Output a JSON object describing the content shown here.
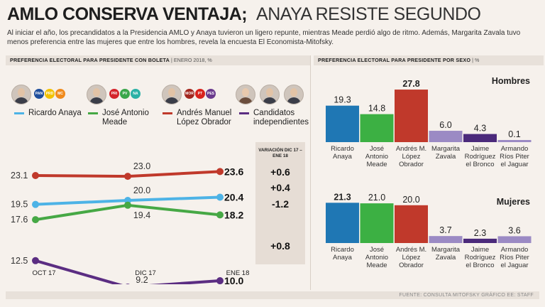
{
  "title": {
    "bold": "AMLO CONSERVA VENTAJA;",
    "light": "ANAYA RESISTE SEGUNDO"
  },
  "intro": "Al iniciar el año, los precandidatos a la Presidencia AMLO y Anaya tuvieron un ligero repunte, mientras Meade perdió algo de ritmo. Además, Margarita Zavala tuvo menos preferencia entre las mujeres que entre los hombres, revela la encuesta El Economista-Mitofsky.",
  "left_header": {
    "bold": "PREFERENCIA ELECTORAL PARA PRESIDENTE CON BOLETA",
    "light": "| ENERO 2018, %"
  },
  "right_header": {
    "bold": "PREFERENCIA ELECTORAL PARA PRESIDENTE POR SEXO",
    "light": "| %"
  },
  "party_logos": {
    "anaya": [
      {
        "text": "PAN",
        "color": "#1f4e9c"
      },
      {
        "text": "PRD",
        "color": "#f2c200"
      },
      {
        "text": "MC",
        "color": "#f08a1c"
      }
    ],
    "meade": [
      {
        "text": "PRI",
        "color": "#d4242b"
      },
      {
        "text": "PV",
        "color": "#3aa64a"
      },
      {
        "text": "NA",
        "color": "#2bb1a6"
      }
    ],
    "amlo": [
      {
        "text": "MOR",
        "color": "#a3271f"
      },
      {
        "text": "PT",
        "color": "#d8231d"
      },
      {
        "text": "PES",
        "color": "#6a3a8d"
      }
    ]
  },
  "legend": [
    {
      "label": "Ricardo Anaya",
      "color": "#4db3e6"
    },
    {
      "label": "José Antonio Meade",
      "color": "#46a845"
    },
    {
      "label": "Andrés Manuel López Obrador",
      "color": "#c0392b"
    },
    {
      "label": "Candidatos independientes",
      "color": "#5b2d82"
    }
  ],
  "variation": {
    "header": "VARIACIÓN DIC 17 – ENE 18",
    "values": [
      "+0.6",
      "+0.4",
      "-1.2",
      "+0.8"
    ]
  },
  "footer": "FUENTE: CONSULTA MITOFSKY    GRÁFICO EE: STAFF",
  "chart_data": [
    {
      "type": "line",
      "categories": [
        "OCT 17",
        "DIC 17",
        "ENE 18"
      ],
      "series": [
        {
          "name": "Andrés Manuel López Obrador",
          "color": "#c0392b",
          "values": [
            23.1,
            23.0,
            23.6
          ]
        },
        {
          "name": "Ricardo Anaya",
          "color": "#4db3e6",
          "values": [
            19.5,
            20.0,
            20.4
          ]
        },
        {
          "name": "José Antonio Meade",
          "color": "#46a845",
          "values": [
            17.6,
            19.4,
            18.2
          ]
        },
        {
          "name": "Candidatos independientes",
          "color": "#5b2d82",
          "values": [
            12.5,
            9.2,
            10.0
          ]
        }
      ]
    },
    {
      "type": "bar",
      "title": "Hombres",
      "categories": [
        "Ricardo Anaya",
        "José Antonio Meade",
        "Andrés M. López Obrador",
        "Margarita Zavala",
        "Jaime Rodríguez el Bronco",
        "Armando Ríos Piter el Jaguar"
      ],
      "values": [
        19.3,
        14.8,
        27.8,
        6.0,
        4.3,
        0.1
      ],
      "labels": [
        "19.3",
        "14.8",
        "27.8",
        "6.0",
        "4.3",
        "0.1"
      ],
      "colors": [
        "#1f77b4",
        "#3cb043",
        "#c0392b",
        "#9b8ac4",
        "#4b2a7b",
        "#9b8ac4"
      ]
    },
    {
      "type": "bar",
      "title": "Mujeres",
      "categories": [
        "Ricardo Anaya",
        "José Antonio Meade",
        "Andrés M. López Obrador",
        "Margarita Zavala",
        "Jaime Rodríguez el Bronco",
        "Armando Ríos Piter el Jaguar"
      ],
      "values": [
        21.3,
        21.0,
        20.0,
        3.7,
        2.3,
        3.6
      ],
      "labels": [
        "21.3",
        "21.0",
        "20.0",
        "3.7",
        "2.3",
        "3.6"
      ],
      "colors": [
        "#1f77b4",
        "#3cb043",
        "#c0392b",
        "#9b8ac4",
        "#4b2a7b",
        "#9b8ac4"
      ]
    }
  ]
}
